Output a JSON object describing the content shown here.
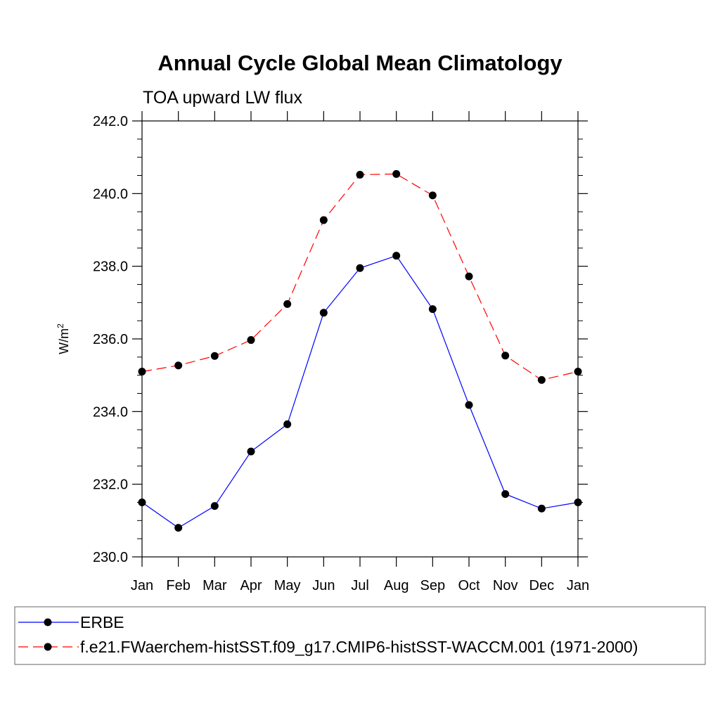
{
  "chart_data": {
    "type": "line",
    "title": "Annual Cycle Global Mean Climatology",
    "subtitle": "TOA upward LW flux",
    "ylabel_base": "W/m",
    "ylabel_sup": "2",
    "xlabel": "",
    "categories": [
      "Jan",
      "Feb",
      "Mar",
      "Apr",
      "May",
      "Jun",
      "Jul",
      "Aug",
      "Sep",
      "Oct",
      "Nov",
      "Dec",
      "Jan"
    ],
    "ylim": [
      230.0,
      242.0
    ],
    "yticks": [
      "230.0",
      "232.0",
      "234.0",
      "236.0",
      "238.0",
      "240.0",
      "242.0"
    ],
    "grid": false,
    "legend_position": "bottom",
    "series": [
      {
        "name": "ERBE",
        "color": "#0000ff",
        "dash": "solid",
        "values": [
          231.5,
          230.8,
          231.4,
          232.9,
          233.65,
          236.72,
          237.95,
          238.29,
          236.82,
          234.18,
          231.73,
          231.33,
          231.5
        ]
      },
      {
        "name": "f.e21.FWaerchem-histSST.f09_g17.CMIP6-histSST-WACCM.001 (1971-2000)",
        "color": "#ff0000",
        "dash": "dashed",
        "values": [
          235.1,
          235.27,
          235.53,
          235.97,
          236.96,
          239.27,
          240.52,
          240.54,
          239.95,
          237.72,
          235.54,
          234.87,
          235.1
        ]
      }
    ]
  }
}
